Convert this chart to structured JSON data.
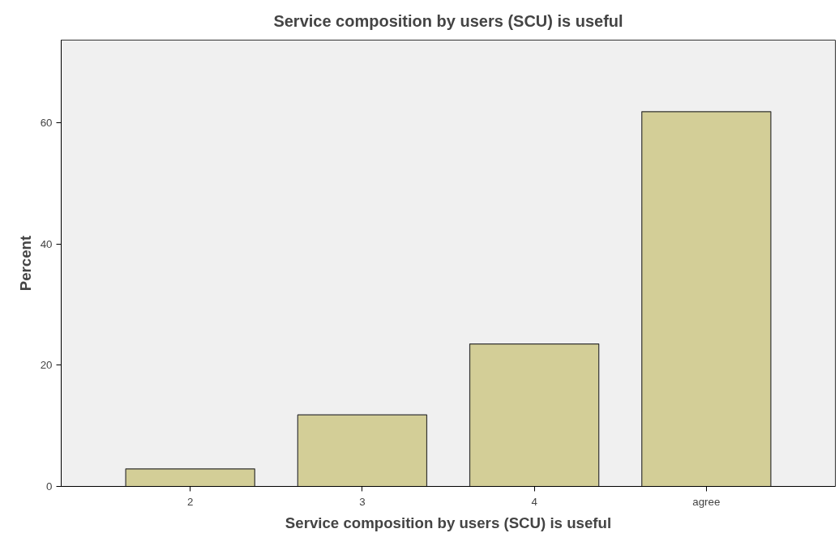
{
  "chart_data": {
    "type": "bar",
    "title": "Service composition by users (SCU) is useful",
    "xlabel": "Service composition by users (SCU) is useful",
    "ylabel": "Percent",
    "categories": [
      "2",
      "3",
      "4",
      "agree"
    ],
    "values": [
      2.9,
      11.8,
      23.5,
      61.8
    ],
    "color": "#d3ce97",
    "ylim": [
      0,
      73.6
    ],
    "yticks": [
      0,
      20,
      40,
      60
    ],
    "grid": false
  }
}
